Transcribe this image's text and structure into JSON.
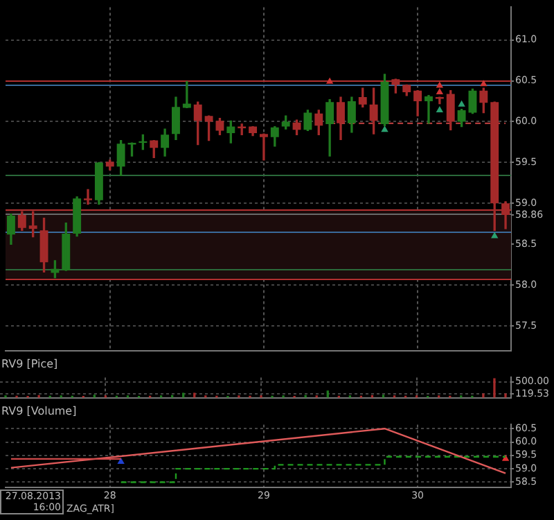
{
  "chart_data": [
    {
      "type": "candlestick",
      "categories": [
        null,
        null,
        null,
        null,
        null,
        null,
        null,
        null,
        null,
        "28",
        null,
        null,
        null,
        null,
        null,
        null,
        null,
        null,
        null,
        null,
        null,
        null,
        null,
        "29",
        null,
        null,
        null,
        null,
        null,
        null,
        null,
        null,
        null,
        null,
        null,
        null,
        null,
        "30",
        null,
        null,
        null,
        null,
        null,
        null,
        null,
        null
      ],
      "ohlc": [
        [
          58.62,
          58.87,
          58.5,
          58.85
        ],
        [
          58.86,
          58.9,
          58.67,
          58.7
        ],
        [
          58.73,
          58.9,
          58.59,
          58.69
        ],
        [
          58.67,
          58.82,
          58.16,
          58.28
        ],
        [
          58.15,
          58.3,
          58.09,
          58.2
        ],
        [
          58.18,
          58.76,
          58.18,
          58.63
        ],
        [
          58.63,
          59.08,
          58.6,
          59.06
        ],
        [
          59.06,
          59.17,
          58.99,
          59.04
        ],
        [
          59.04,
          59.5,
          58.99,
          59.5
        ],
        [
          59.51,
          59.53,
          59.41,
          59.45
        ],
        [
          59.45,
          59.77,
          59.34,
          59.73
        ],
        [
          59.72,
          59.74,
          59.58,
          59.74
        ],
        [
          59.74,
          59.84,
          59.66,
          59.76
        ],
        [
          59.77,
          59.77,
          59.56,
          59.68
        ],
        [
          59.68,
          59.91,
          59.58,
          59.84
        ],
        [
          59.85,
          60.3,
          59.78,
          60.18
        ],
        [
          60.17,
          60.49,
          60.17,
          60.22
        ],
        [
          60.21,
          60.24,
          59.72,
          60.01
        ],
        [
          60.07,
          60.07,
          59.77,
          60.0
        ],
        [
          60.01,
          60.04,
          59.84,
          59.89
        ],
        [
          59.86,
          60.01,
          59.74,
          59.94
        ],
        [
          59.94,
          59.97,
          59.84,
          59.92
        ],
        [
          59.94,
          59.94,
          59.83,
          59.86
        ],
        [
          59.85,
          59.85,
          59.53,
          59.81
        ],
        [
          59.81,
          59.94,
          59.7,
          59.93
        ],
        [
          59.94,
          60.07,
          59.91,
          60.0
        ],
        [
          59.99,
          60.02,
          59.84,
          59.9
        ],
        [
          59.9,
          60.14,
          59.89,
          60.11
        ],
        [
          60.1,
          60.14,
          59.84,
          59.95
        ],
        [
          59.97,
          60.27,
          59.58,
          60.24
        ],
        [
          60.24,
          60.3,
          59.78,
          59.98
        ],
        [
          59.98,
          60.3,
          59.87,
          60.25
        ],
        [
          60.3,
          60.41,
          60.18,
          60.21
        ],
        [
          60.21,
          60.41,
          59.85,
          60.01
        ],
        [
          59.97,
          60.58,
          59.95,
          60.49
        ],
        [
          60.52,
          60.52,
          60.35,
          60.45
        ],
        [
          60.45,
          60.45,
          60.32,
          60.36
        ],
        [
          60.38,
          60.38,
          60.07,
          60.25
        ],
        [
          60.25,
          60.32,
          59.98,
          60.31
        ],
        [
          60.3,
          60.3,
          60.22,
          60.28
        ],
        [
          60.34,
          60.38,
          59.9,
          60.0
        ],
        [
          60.0,
          60.15,
          59.94,
          60.14
        ],
        [
          60.11,
          60.4,
          60.1,
          60.38
        ],
        [
          60.38,
          60.41,
          60.11,
          60.23
        ],
        [
          60.24,
          60.24,
          58.67,
          59.0
        ],
        [
          59.0,
          59.02,
          58.69,
          58.86
        ]
      ],
      "colors": [
        "#1f7a1f",
        "#a52a2a",
        "#a52a2a",
        "#a52a2a",
        "#1f7a1f",
        "#1f7a1f",
        "#1f7a1f",
        "#a52a2a",
        "#1f7a1f",
        "#a52a2a",
        "#1f7a1f",
        "#1f7a1f",
        "#1f7a1f",
        "#a52a2a",
        "#1f7a1f",
        "#1f7a1f",
        "#1f7a1f",
        "#a52a2a",
        "#a52a2a",
        "#a52a2a",
        "#1f7a1f",
        "#a52a2a",
        "#a52a2a",
        "#a52a2a",
        "#1f7a1f",
        "#1f7a1f",
        "#a52a2a",
        "#1f7a1f",
        "#a52a2a",
        "#1f7a1f",
        "#a52a2a",
        "#1f7a1f",
        "#a52a2a",
        "#a52a2a",
        "#1f7a1f",
        "#a52a2a",
        "#a52a2a",
        "#a52a2a",
        "#1f7a1f",
        "#a52a2a",
        "#a52a2a",
        "#1f7a1f",
        "#1f7a1f",
        "#a52a2a",
        "#a52a2a",
        "#a52a2a"
      ],
      "series": [
        {
          "type": "line",
          "color": "#b03a3a",
          "line_style": "dashed",
          "values": [
            null,
            null,
            null,
            null,
            null,
            null,
            null,
            null,
            null,
            null,
            null,
            null,
            null,
            null,
            null,
            null,
            null,
            null,
            null,
            null,
            null,
            null,
            null,
            null,
            null,
            null,
            null,
            null,
            null,
            59.98,
            59.98,
            59.98,
            59.98,
            59.98,
            59.98,
            59.98,
            59.98,
            59.98,
            59.98,
            59.98,
            59.98,
            59.98,
            59.98,
            59.98,
            59.98,
            59.98
          ]
        },
        {
          "type": "scatter",
          "color": "#2aa070",
          "marker": "triangle",
          "values": [
            null,
            null,
            null,
            null,
            null,
            null,
            null,
            null,
            null,
            null,
            null,
            null,
            null,
            null,
            null,
            null,
            null,
            null,
            null,
            null,
            null,
            null,
            null,
            null,
            null,
            null,
            null,
            null,
            null,
            null,
            null,
            null,
            null,
            null,
            59.9,
            null,
            null,
            null,
            null,
            60.14,
            null,
            60.21,
            null,
            null,
            58.6,
            null
          ]
        },
        {
          "type": "scatter",
          "color": "#d03535",
          "marker": "triangle",
          "values": [
            null,
            null,
            null,
            null,
            null,
            null,
            null,
            null,
            null,
            null,
            null,
            null,
            null,
            null,
            null,
            null,
            null,
            null,
            null,
            null,
            null,
            null,
            null,
            null,
            null,
            null,
            null,
            null,
            null,
            60.49,
            null,
            null,
            null,
            null,
            null,
            null,
            null,
            null,
            null,
            60.44,
            null,
            null,
            null,
            60.46,
            null,
            null
          ]
        },
        {
          "type": "scatter",
          "color": "#d03535",
          "marker": "triangle",
          "values": [
            null,
            null,
            null,
            null,
            null,
            null,
            null,
            null,
            null,
            null,
            null,
            null,
            null,
            null,
            null,
            null,
            null,
            null,
            null,
            null,
            null,
            null,
            null,
            null,
            null,
            null,
            null,
            null,
            null,
            null,
            null,
            null,
            null,
            null,
            null,
            null,
            null,
            null,
            null,
            60.36,
            null,
            null,
            null,
            null,
            null,
            null
          ]
        }
      ],
      "ylim": [
        57.2,
        61.4
      ],
      "yticks": [
        57.5,
        {
          "value": 58,
          "label": "58.0"
        },
        58.5,
        58.86,
        {
          "value": 59,
          "label": "59.0"
        },
        59.5,
        {
          "value": 60,
          "label": "60.0"
        },
        60.5,
        {
          "value": 61,
          "label": "61.0"
        }
      ],
      "ref_lines": [
        {
          "axis": "y",
          "value": 60.5,
          "color": "#b03030"
        },
        {
          "axis": "y",
          "value": 60.46,
          "color": "#3a6a9a"
        },
        {
          "axis": "y",
          "value": 59.35,
          "color": "#2a6a3a"
        },
        {
          "axis": "y",
          "value": 58.93,
          "color": "#b03030"
        },
        {
          "axis": "y",
          "value": 58.88,
          "color": "#6a6a6a"
        },
        {
          "axis": "y",
          "value": 58.66,
          "color": "#3a6a9a"
        },
        {
          "axis": "y",
          "value": 58.2,
          "color": "#2a6a3a"
        },
        {
          "axis": "y",
          "value": 58.08,
          "color": "#b03030"
        }
      ],
      "bands": [
        {
          "axis": "y",
          "from": 58.08,
          "to": 58.93,
          "color": "#1c0c0c"
        }
      ],
      "grid": true,
      "tick_labels": "y"
    },
    {
      "type": "bar",
      "title": "RV9 [Pice]",
      "categories": [
        null,
        null,
        null,
        null,
        null,
        null,
        null,
        null,
        null,
        "28",
        null,
        null,
        null,
        null,
        null,
        null,
        null,
        null,
        null,
        null,
        null,
        null,
        null,
        "29",
        null,
        null,
        null,
        null,
        null,
        null,
        null,
        null,
        null,
        null,
        null,
        null,
        null,
        "30",
        null,
        null,
        null,
        null,
        null,
        null,
        null,
        null
      ],
      "values": [
        60,
        50,
        40,
        70,
        50,
        60,
        50,
        40,
        80,
        60,
        50,
        60,
        40,
        50,
        60,
        70,
        140,
        140,
        60,
        50,
        40,
        60,
        50,
        60,
        50,
        60,
        40,
        70,
        60,
        210,
        50,
        60,
        50,
        70,
        80,
        60,
        50,
        60,
        40,
        60,
        50,
        60,
        50,
        120,
        600,
        120
      ],
      "colors": [
        "#1f7a1f",
        "#a52a2a",
        "#a52a2a",
        "#a52a2a",
        "#1f7a1f",
        "#1f7a1f",
        "#1f7a1f",
        "#a52a2a",
        "#1f7a1f",
        "#a52a2a",
        "#1f7a1f",
        "#1f7a1f",
        "#1f7a1f",
        "#a52a2a",
        "#1f7a1f",
        "#1f7a1f",
        "#1f7a1f",
        "#a52a2a",
        "#a52a2a",
        "#a52a2a",
        "#1f7a1f",
        "#a52a2a",
        "#a52a2a",
        "#a52a2a",
        "#1f7a1f",
        "#1f7a1f",
        "#a52a2a",
        "#1f7a1f",
        "#a52a2a",
        "#1f7a1f",
        "#a52a2a",
        "#1f7a1f",
        "#a52a2a",
        "#a52a2a",
        "#1f7a1f",
        "#a52a2a",
        "#a52a2a",
        "#a52a2a",
        "#1f7a1f",
        "#a52a2a",
        "#a52a2a",
        "#1f7a1f",
        "#1f7a1f",
        "#a52a2a",
        "#a52a2a",
        "#a52a2a"
      ],
      "ylim": [
        0,
        640
      ],
      "yticks": [
        119.53,
        {
          "value": 500,
          "label": "500.00"
        }
      ],
      "grid": true,
      "tick_labels": "y"
    },
    {
      "type": "line",
      "title": "RV9 [Volume]",
      "categories": [
        null,
        null,
        null,
        null,
        null,
        null,
        null,
        null,
        null,
        "28",
        null,
        null,
        null,
        null,
        null,
        null,
        null,
        null,
        null,
        null,
        null,
        null,
        null,
        "29",
        null,
        null,
        null,
        null,
        null,
        null,
        null,
        null,
        null,
        null,
        null,
        null,
        null,
        "30",
        null,
        null,
        null,
        null,
        null,
        null,
        null,
        null
      ],
      "series": [
        {
          "color": "#d04a4a",
          "values": [
            59.37,
            null,
            null,
            null,
            null,
            null,
            null,
            null,
            null,
            null,
            59.37,
            null,
            null,
            null,
            null,
            null,
            null,
            null,
            null,
            null,
            null,
            null,
            null,
            null,
            null,
            null,
            null,
            null,
            null,
            null,
            null,
            null,
            null,
            null,
            null,
            null,
            null,
            null,
            null,
            null,
            null,
            null,
            null,
            null,
            null,
            null
          ]
        },
        {
          "color": "#e05a5a",
          "values": [
            59.04,
            null,
            null,
            null,
            null,
            null,
            null,
            null,
            null,
            null,
            null,
            null,
            null,
            null,
            null,
            null,
            null,
            null,
            null,
            null,
            null,
            null,
            null,
            null,
            null,
            null,
            null,
            null,
            null,
            null,
            null,
            null,
            null,
            null,
            60.5,
            null,
            null,
            null,
            null,
            null,
            null,
            null,
            null,
            null,
            null,
            58.83
          ]
        },
        {
          "type": "step",
          "color": "#1f9a1f",
          "line_style": "dashed",
          "values": [
            null,
            null,
            null,
            null,
            null,
            null,
            null,
            null,
            null,
            null,
            58.5,
            58.5,
            58.5,
            58.5,
            58.5,
            59.0,
            59.0,
            59.0,
            59.0,
            59.0,
            59.0,
            59.0,
            59.0,
            59.0,
            59.15,
            59.15,
            59.15,
            59.15,
            59.15,
            59.15,
            59.15,
            59.15,
            59.15,
            59.15,
            59.45,
            59.45,
            59.45,
            59.45,
            59.45,
            59.45,
            59.45,
            59.45,
            59.45,
            59.45,
            59.45,
            59.45
          ]
        },
        {
          "type": "scatter",
          "color": "#2040d0",
          "marker": "triangle",
          "values": [
            null,
            null,
            null,
            null,
            null,
            null,
            null,
            null,
            null,
            null,
            59.26,
            null,
            null,
            null,
            null,
            null,
            null,
            null,
            null,
            null,
            null,
            null,
            null,
            null,
            null,
            null,
            null,
            null,
            null,
            null,
            null,
            null,
            null,
            null,
            null,
            null,
            null,
            null,
            null,
            null,
            null,
            null,
            null,
            null,
            null,
            null
          ]
        },
        {
          "type": "scatter",
          "color": "#e03030",
          "marker": "triangle",
          "values": [
            null,
            null,
            null,
            null,
            null,
            null,
            null,
            null,
            null,
            null,
            null,
            null,
            null,
            null,
            null,
            null,
            null,
            null,
            null,
            null,
            null,
            null,
            null,
            null,
            null,
            null,
            null,
            null,
            null,
            null,
            null,
            null,
            null,
            null,
            null,
            null,
            null,
            null,
            null,
            null,
            null,
            null,
            null,
            null,
            null,
            59.37
          ]
        }
      ],
      "ylim": [
        58.3,
        60.65
      ],
      "yticks": [
        58.5,
        {
          "value": 59,
          "label": "59.0"
        },
        59.5,
        {
          "value": 60,
          "label": "60.0"
        },
        60.5
      ],
      "annotations": [
        "27.08.2013 16:00",
        "ZAG_ATR]"
      ],
      "grid": true
    }
  ]
}
